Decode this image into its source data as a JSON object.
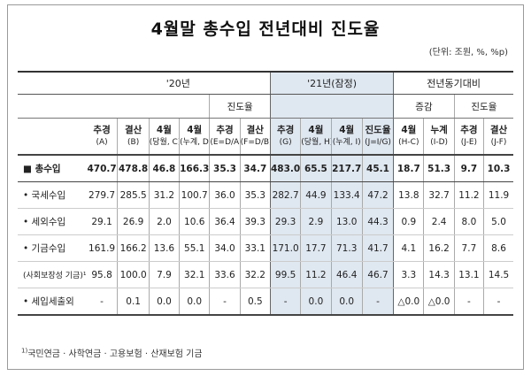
{
  "title": "4월말 총수입 전년대비 진도율",
  "unit": "(단위: 조원, %, %p)",
  "sections": {
    "y20": "'20년",
    "y21": "'21년(잠정)",
    "yoy": "전년동기대비"
  },
  "subheaders": {
    "progress20": "진도율",
    "change": "증감",
    "progress_diff": "진도율"
  },
  "columns": [
    {
      "k": "추경",
      "s": "(A)"
    },
    {
      "k": "결산",
      "s": "(B)"
    },
    {
      "k": "4월",
      "s": "(당월, C)"
    },
    {
      "k": "4월",
      "s": "(누계, D)"
    },
    {
      "k": "추경",
      "s": "(E=D/A)"
    },
    {
      "k": "결산",
      "s": "(F=D/B)"
    },
    {
      "k": "추경",
      "s": "(G)"
    },
    {
      "k": "4월",
      "s": "(당월, H)"
    },
    {
      "k": "4월",
      "s": "(누계, I)"
    },
    {
      "k": "진도율",
      "s": "(J=I/G)"
    },
    {
      "k": "4월",
      "s": "(H-C)"
    },
    {
      "k": "누계",
      "s": "(I-D)"
    },
    {
      "k": "추경",
      "s": "(J-E)"
    },
    {
      "k": "결산",
      "s": "(J-F)"
    }
  ],
  "rows": [
    {
      "label": "■ 총수입",
      "values": [
        "470.7",
        "478.8",
        "46.8",
        "166.3",
        "35.3",
        "34.7",
        "483.0",
        "65.5",
        "217.7",
        "45.1",
        "18.7",
        "51.3",
        "9.7",
        "10.3"
      ]
    },
    {
      "label": "• 국세수입",
      "values": [
        "279.7",
        "285.5",
        "31.2",
        "100.7",
        "36.0",
        "35.3",
        "282.7",
        "44.9",
        "133.4",
        "47.2",
        "13.8",
        "32.7",
        "11.2",
        "11.9"
      ]
    },
    {
      "label": "• 세외수입",
      "values": [
        "29.1",
        "26.9",
        "2.0",
        "10.6",
        "36.4",
        "39.3",
        "29.3",
        "2.9",
        "13.0",
        "44.3",
        "0.9",
        "2.4",
        "8.0",
        "5.0"
      ]
    },
    {
      "label": "• 기금수입",
      "values": [
        "161.9",
        "166.2",
        "13.6",
        "55.1",
        "34.0",
        "33.1",
        "171.0",
        "17.7",
        "71.3",
        "41.7",
        "4.1",
        "16.2",
        "7.7",
        "8.6"
      ]
    },
    {
      "label": "(사회보장성 기금)¹",
      "values": [
        "95.8",
        "100.0",
        "7.9",
        "32.1",
        "33.6",
        "32.2",
        "99.5",
        "11.2",
        "46.4",
        "46.7",
        "3.3",
        "14.3",
        "13.1",
        "14.5"
      ]
    },
    {
      "label": "• 세입세출외",
      "values": [
        "-",
        "0.1",
        "0.0",
        "0.0",
        "-",
        "0.5",
        "-",
        "0.0",
        "0.0",
        "-",
        "△0.0",
        "△0.0",
        "-",
        "-"
      ]
    }
  ],
  "footnote_mark": "1)",
  "footnote": "국민연금 · 사학연금 · 고용보험 · 산재보험 기금"
}
